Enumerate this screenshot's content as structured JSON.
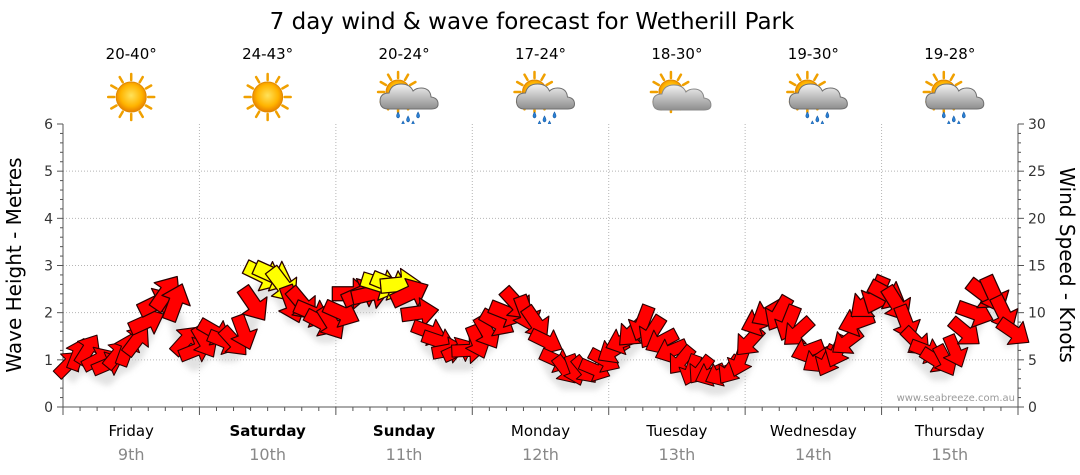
{
  "chart_data": {
    "type": "line",
    "title": "7 day wind & wave forecast for Wetherill Park",
    "ylabel_left": "Wave Height - Metres",
    "ylabel_right": "Wind Speed - Knots",
    "yleft_ticks": [
      "0",
      "1",
      "2",
      "3",
      "4",
      "5",
      "6"
    ],
    "yright_ticks": [
      "0",
      "5",
      "10",
      "15",
      "20",
      "25",
      "30"
    ],
    "ylim_left": [
      0,
      6
    ],
    "ylim_right": [
      0,
      30
    ],
    "grid": true,
    "credit": "www.seabreeze.com.au",
    "days": [
      {
        "name": "Friday",
        "date": "9th",
        "temp": "20-40°",
        "icon": "sun-icon",
        "bold": false
      },
      {
        "name": "Saturday",
        "date": "10th",
        "temp": "24-43°",
        "icon": "sun-icon",
        "bold": true
      },
      {
        "name": "Sunday",
        "date": "11th",
        "temp": "20-24°",
        "icon": "sun-cloud-rain-icon",
        "bold": true
      },
      {
        "name": "Monday",
        "date": "12th",
        "temp": "17-24°",
        "icon": "sun-cloud-rain-icon",
        "bold": false
      },
      {
        "name": "Tuesday",
        "date": "13th",
        "temp": "18-30°",
        "icon": "sun-cloud-icon",
        "bold": false
      },
      {
        "name": "Wednesday",
        "date": "14th",
        "temp": "19-30°",
        "icon": "sun-cloud-rain-icon",
        "bold": false
      },
      {
        "name": "Thursday",
        "date": "15th",
        "temp": "19-28°",
        "icon": "sun-cloud-rain-icon",
        "bold": false
      }
    ],
    "series": [
      {
        "name": "Wind Speed",
        "unit": "knots",
        "values": [
          4.5,
          5.5,
          6,
          5,
          4.5,
          5.5,
          6,
          7,
          9,
          11,
          12,
          11,
          7,
          6,
          7,
          8,
          7,
          7,
          8,
          11,
          14,
          14,
          13,
          11,
          11,
          10,
          9,
          9,
          10,
          12,
          12,
          12,
          13,
          13,
          13,
          12,
          10,
          8,
          7,
          6,
          6,
          6,
          7,
          8,
          9,
          10,
          11,
          10,
          9,
          7,
          5,
          4,
          4,
          4,
          4,
          5,
          6,
          7,
          8,
          9,
          8,
          7,
          6,
          5,
          4,
          4,
          3.5,
          3.5,
          4,
          5,
          7,
          9,
          10,
          10,
          9,
          8,
          6,
          5,
          5,
          6,
          7,
          9,
          11,
          12,
          12,
          11,
          9,
          7,
          6,
          5,
          5,
          6,
          8,
          10,
          12,
          12,
          10,
          8
        ],
        "color_calm": "#ff0000",
        "color_strong": "#ffff00"
      }
    ],
    "wind_directions": [
      {
        "label": "Friday",
        "from": "SW"
      },
      {
        "label": "Saturday",
        "from": "NW"
      },
      {
        "label": "Sunday",
        "from": "W"
      },
      {
        "label": "Monday",
        "from": "NW"
      },
      {
        "label": "Tuesday",
        "from": "NE"
      },
      {
        "label": "Wednesday",
        "from": "NE"
      },
      {
        "label": "Thursday",
        "from": "NW"
      }
    ]
  }
}
